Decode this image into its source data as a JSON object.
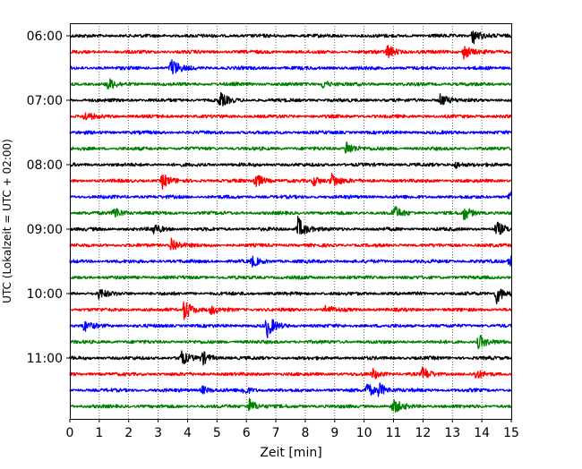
{
  "chart_data": {
    "type": "line",
    "xlabel": "Zeit  [min]",
    "ylabel": "UTC (Lokalzeit = UTC + 02:00)",
    "xlim": [
      0,
      15
    ],
    "x_ticks": [
      "0",
      "1",
      "2",
      "3",
      "4",
      "5",
      "6",
      "7",
      "8",
      "9",
      "10",
      "11",
      "12",
      "13",
      "14",
      "15"
    ],
    "y_tick_labels": [
      "06:00",
      "07:00",
      "08:00",
      "09:00",
      "10:00",
      "11:00"
    ],
    "grid": "vertical dotted at every minute",
    "row_interval_minutes": 15,
    "series_colors": [
      "#000000",
      "#ff0000",
      "#0000ff",
      "#008000"
    ],
    "rows": [
      {
        "start": "06:00",
        "color": "#000000",
        "events": [
          [
            13.7,
            1.0
          ]
        ]
      },
      {
        "start": "06:15",
        "color": "#ff0000",
        "events": [
          [
            10.8,
            0.9
          ],
          [
            13.4,
            0.9
          ]
        ]
      },
      {
        "start": "06:30",
        "color": "#0000ff",
        "events": [
          [
            3.45,
            1.2
          ]
        ]
      },
      {
        "start": "06:45",
        "color": "#008000",
        "events": [
          [
            1.3,
            0.7
          ],
          [
            8.6,
            0.5
          ]
        ]
      },
      {
        "start": "07:00",
        "color": "#000000",
        "events": [
          [
            5.1,
            0.9
          ],
          [
            12.6,
            0.8
          ]
        ]
      },
      {
        "start": "07:15",
        "color": "#ff0000",
        "events": [
          [
            0.5,
            0.5
          ]
        ]
      },
      {
        "start": "07:30",
        "color": "#0000ff",
        "events": []
      },
      {
        "start": "07:45",
        "color": "#008000",
        "events": [
          [
            9.4,
            1.0
          ]
        ]
      },
      {
        "start": "08:00",
        "color": "#000000",
        "events": [
          [
            13.1,
            0.4
          ]
        ]
      },
      {
        "start": "08:15",
        "color": "#ff0000",
        "events": [
          [
            3.15,
            0.9
          ],
          [
            6.3,
            1.0
          ],
          [
            8.3,
            0.6
          ],
          [
            8.9,
            1.0
          ]
        ]
      },
      {
        "start": "08:30",
        "color": "#0000ff",
        "events": [
          [
            14.95,
            0.9
          ]
        ]
      },
      {
        "start": "08:45",
        "color": "#008000",
        "events": [
          [
            1.5,
            0.8
          ],
          [
            11.0,
            0.9
          ],
          [
            13.4,
            0.8
          ]
        ]
      },
      {
        "start": "09:00",
        "color": "#000000",
        "events": [
          [
            2.85,
            0.6
          ],
          [
            7.75,
            1.5
          ],
          [
            14.5,
            0.9
          ]
        ]
      },
      {
        "start": "09:15",
        "color": "#ff0000",
        "events": [
          [
            3.45,
            1.0
          ]
        ]
      },
      {
        "start": "09:30",
        "color": "#0000ff",
        "events": [
          [
            6.2,
            0.6
          ],
          [
            14.95,
            0.8
          ]
        ]
      },
      {
        "start": "09:45",
        "color": "#008000",
        "events": []
      },
      {
        "start": "10:00",
        "color": "#000000",
        "events": [
          [
            1.0,
            0.6
          ],
          [
            14.5,
            1.2
          ]
        ]
      },
      {
        "start": "10:15",
        "color": "#ff0000",
        "events": [
          [
            3.9,
            1.4
          ],
          [
            4.8,
            0.5
          ],
          [
            8.7,
            0.5
          ]
        ]
      },
      {
        "start": "10:30",
        "color": "#0000ff",
        "events": [
          [
            0.5,
            0.6
          ],
          [
            6.7,
            1.4
          ]
        ]
      },
      {
        "start": "10:45",
        "color": "#008000",
        "events": [
          [
            13.9,
            0.9
          ]
        ]
      },
      {
        "start": "11:00",
        "color": "#000000",
        "events": [
          [
            3.75,
            1.0
          ],
          [
            4.5,
            0.8
          ]
        ]
      },
      {
        "start": "11:15",
        "color": "#ff0000",
        "events": [
          [
            10.3,
            0.6
          ],
          [
            12.0,
            0.8
          ],
          [
            13.8,
            0.5
          ]
        ]
      },
      {
        "start": "11:30",
        "color": "#0000ff",
        "events": [
          [
            4.5,
            0.5
          ],
          [
            5.9,
            0.5
          ],
          [
            10.1,
            0.9
          ],
          [
            10.5,
            0.8
          ]
        ]
      },
      {
        "start": "11:45",
        "color": "#008000",
        "events": [
          [
            6.1,
            0.9
          ],
          [
            11.0,
            0.9
          ]
        ]
      }
    ]
  }
}
